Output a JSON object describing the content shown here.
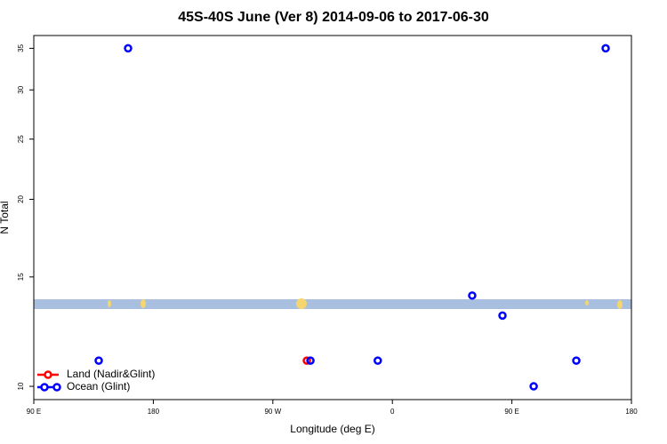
{
  "chart_data": {
    "type": "scatter",
    "title": "45S-40S June (Ver 8)   2014-09-06 to 2017-06-30",
    "x_label": "Longitude (deg E)",
    "y_label": "N Total",
    "xlim": [
      90,
      540
    ],
    "xticks": [
      {
        "value": 90,
        "label": "90 E"
      },
      {
        "value": 180,
        "label": "180"
      },
      {
        "value": 270,
        "label": "90 W"
      },
      {
        "value": 360,
        "label": "0"
      },
      {
        "value": 450,
        "label": "90 E"
      },
      {
        "value": 540,
        "label": "180"
      }
    ],
    "ylim": [
      9.52,
      36.7
    ],
    "yticks": [
      10,
      15,
      20,
      25,
      30,
      35
    ],
    "log_y": true,
    "legend": "bottom-left",
    "series": [
      {
        "name": "Land (Nadir&Glint)",
        "color": "#ff0000",
        "x": [
          295.6
        ],
        "values": [
          11
        ]
      },
      {
        "name": "Ocean (Glint)",
        "color": "#0000ff",
        "x": [
          138.9,
          161,
          298.3,
          349,
          420.1,
          442.9,
          466.4,
          498.5,
          520.6
        ],
        "values": [
          11,
          35,
          11,
          11,
          14,
          13,
          10,
          11,
          35
        ]
      }
    ]
  }
}
